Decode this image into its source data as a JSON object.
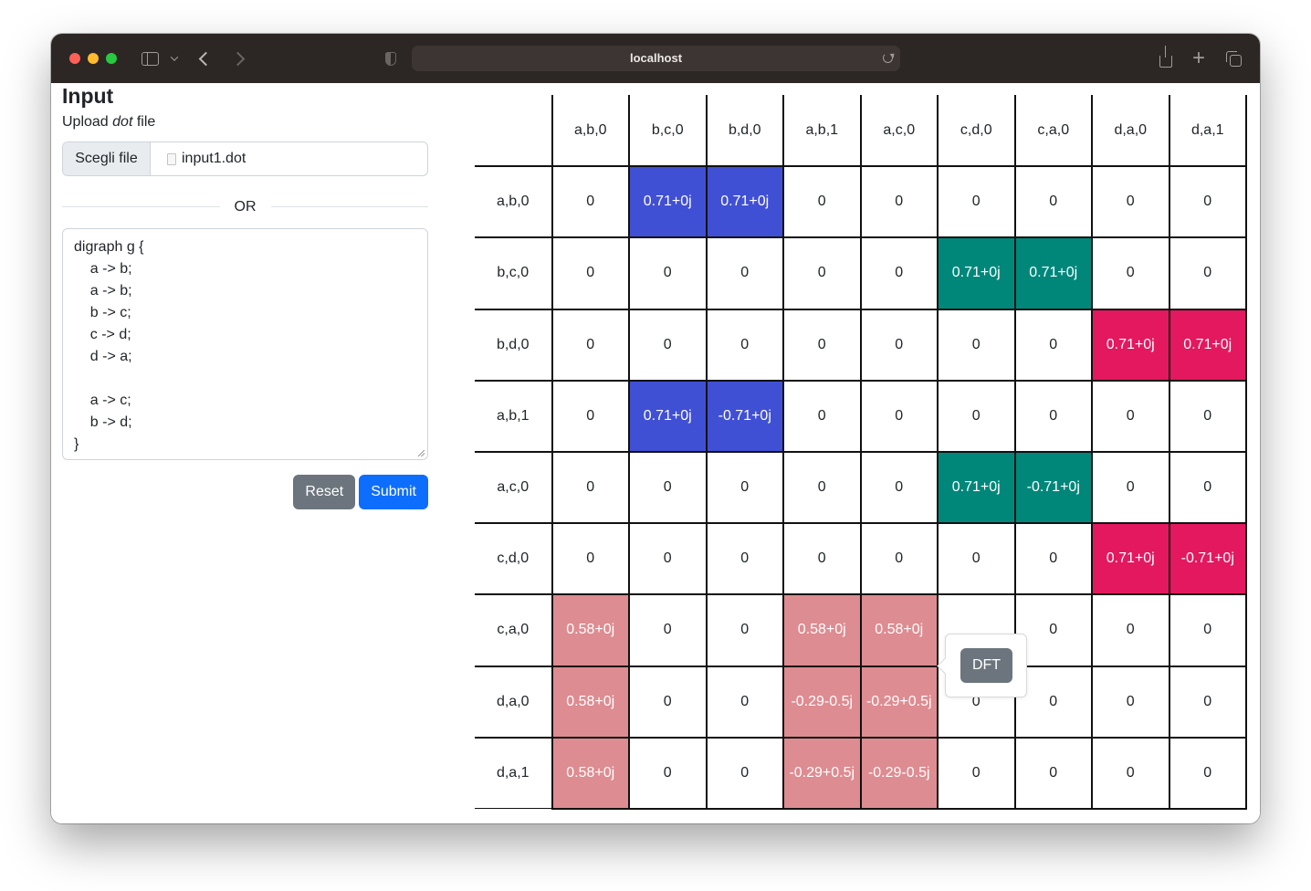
{
  "browser": {
    "url": "localhost"
  },
  "input_panel": {
    "title": "Input",
    "upload_label_prefix": "Upload ",
    "upload_label_em": "dot",
    "upload_label_suffix": " file",
    "file_button": "Scegli file",
    "file_name": "input1.dot",
    "separator": "OR",
    "dot_source": "digraph g {\n    a -> b;\n    a -> b;\n    b -> c;\n    c -> d;\n    d -> a;\n\n    a -> c;\n    b -> d;\n}",
    "reset_label": "Reset",
    "submit_label": "Submit"
  },
  "matrix": {
    "columns": [
      "a,b,0",
      "b,c,0",
      "b,d,0",
      "a,b,1",
      "a,c,0",
      "c,d,0",
      "c,a,0",
      "d,a,0",
      "d,a,1"
    ],
    "rows": [
      {
        "label": "a,b,0",
        "cells": [
          "0",
          "0.71+0j",
          "0.71+0j",
          "0",
          "0",
          "0",
          "0",
          "0",
          "0"
        ],
        "colors": [
          "",
          "blue",
          "blue",
          "",
          "",
          "",
          "",
          "",
          ""
        ]
      },
      {
        "label": "b,c,0",
        "cells": [
          "0",
          "0",
          "0",
          "0",
          "0",
          "0.71+0j",
          "0.71+0j",
          "0",
          "0"
        ],
        "colors": [
          "",
          "",
          "",
          "",
          "",
          "teal",
          "teal",
          "",
          ""
        ]
      },
      {
        "label": "b,d,0",
        "cells": [
          "0",
          "0",
          "0",
          "0",
          "0",
          "0",
          "0",
          "0.71+0j",
          "0.71+0j"
        ],
        "colors": [
          "",
          "",
          "",
          "",
          "",
          "",
          "",
          "crimson",
          "crimson"
        ]
      },
      {
        "label": "a,b,1",
        "cells": [
          "0",
          "0.71+0j",
          "-0.71+0j",
          "0",
          "0",
          "0",
          "0",
          "0",
          "0"
        ],
        "colors": [
          "",
          "blue",
          "blue",
          "",
          "",
          "",
          "",
          "",
          ""
        ]
      },
      {
        "label": "a,c,0",
        "cells": [
          "0",
          "0",
          "0",
          "0",
          "0",
          "0.71+0j",
          "-0.71+0j",
          "0",
          "0"
        ],
        "colors": [
          "",
          "",
          "",
          "",
          "",
          "teal",
          "teal",
          "",
          ""
        ]
      },
      {
        "label": "c,d,0",
        "cells": [
          "0",
          "0",
          "0",
          "0",
          "0",
          "0",
          "0",
          "0.71+0j",
          "-0.71+0j"
        ],
        "colors": [
          "",
          "",
          "",
          "",
          "",
          "",
          "",
          "crimson",
          "crimson"
        ]
      },
      {
        "label": "c,a,0",
        "cells": [
          "0.58+0j",
          "0",
          "0",
          "0.58+0j",
          "0.58+0j",
          "",
          "0",
          "0",
          "0"
        ],
        "colors": [
          "rose",
          "",
          "",
          "rose",
          "rose",
          "",
          "",
          "",
          ""
        ]
      },
      {
        "label": "d,a,0",
        "cells": [
          "0.58+0j",
          "0",
          "0",
          "-0.29-0.5j",
          "-0.29+0.5j",
          "0",
          "0",
          "0",
          "0"
        ],
        "colors": [
          "rose",
          "",
          "",
          "rose",
          "rose",
          "",
          "",
          "",
          ""
        ]
      },
      {
        "label": "d,a,1",
        "cells": [
          "0.58+0j",
          "0",
          "0",
          "-0.29+0.5j",
          "-0.29-0.5j",
          "0",
          "0",
          "0",
          "0"
        ],
        "colors": [
          "rose",
          "",
          "",
          "rose",
          "rose",
          "",
          "",
          "",
          ""
        ]
      }
    ],
    "palette": {
      "blue": "#4050d4",
      "teal": "#00877a",
      "crimson": "#e3185f",
      "rose": "#dd8c91"
    }
  },
  "popover": {
    "button_label": "DFT"
  }
}
